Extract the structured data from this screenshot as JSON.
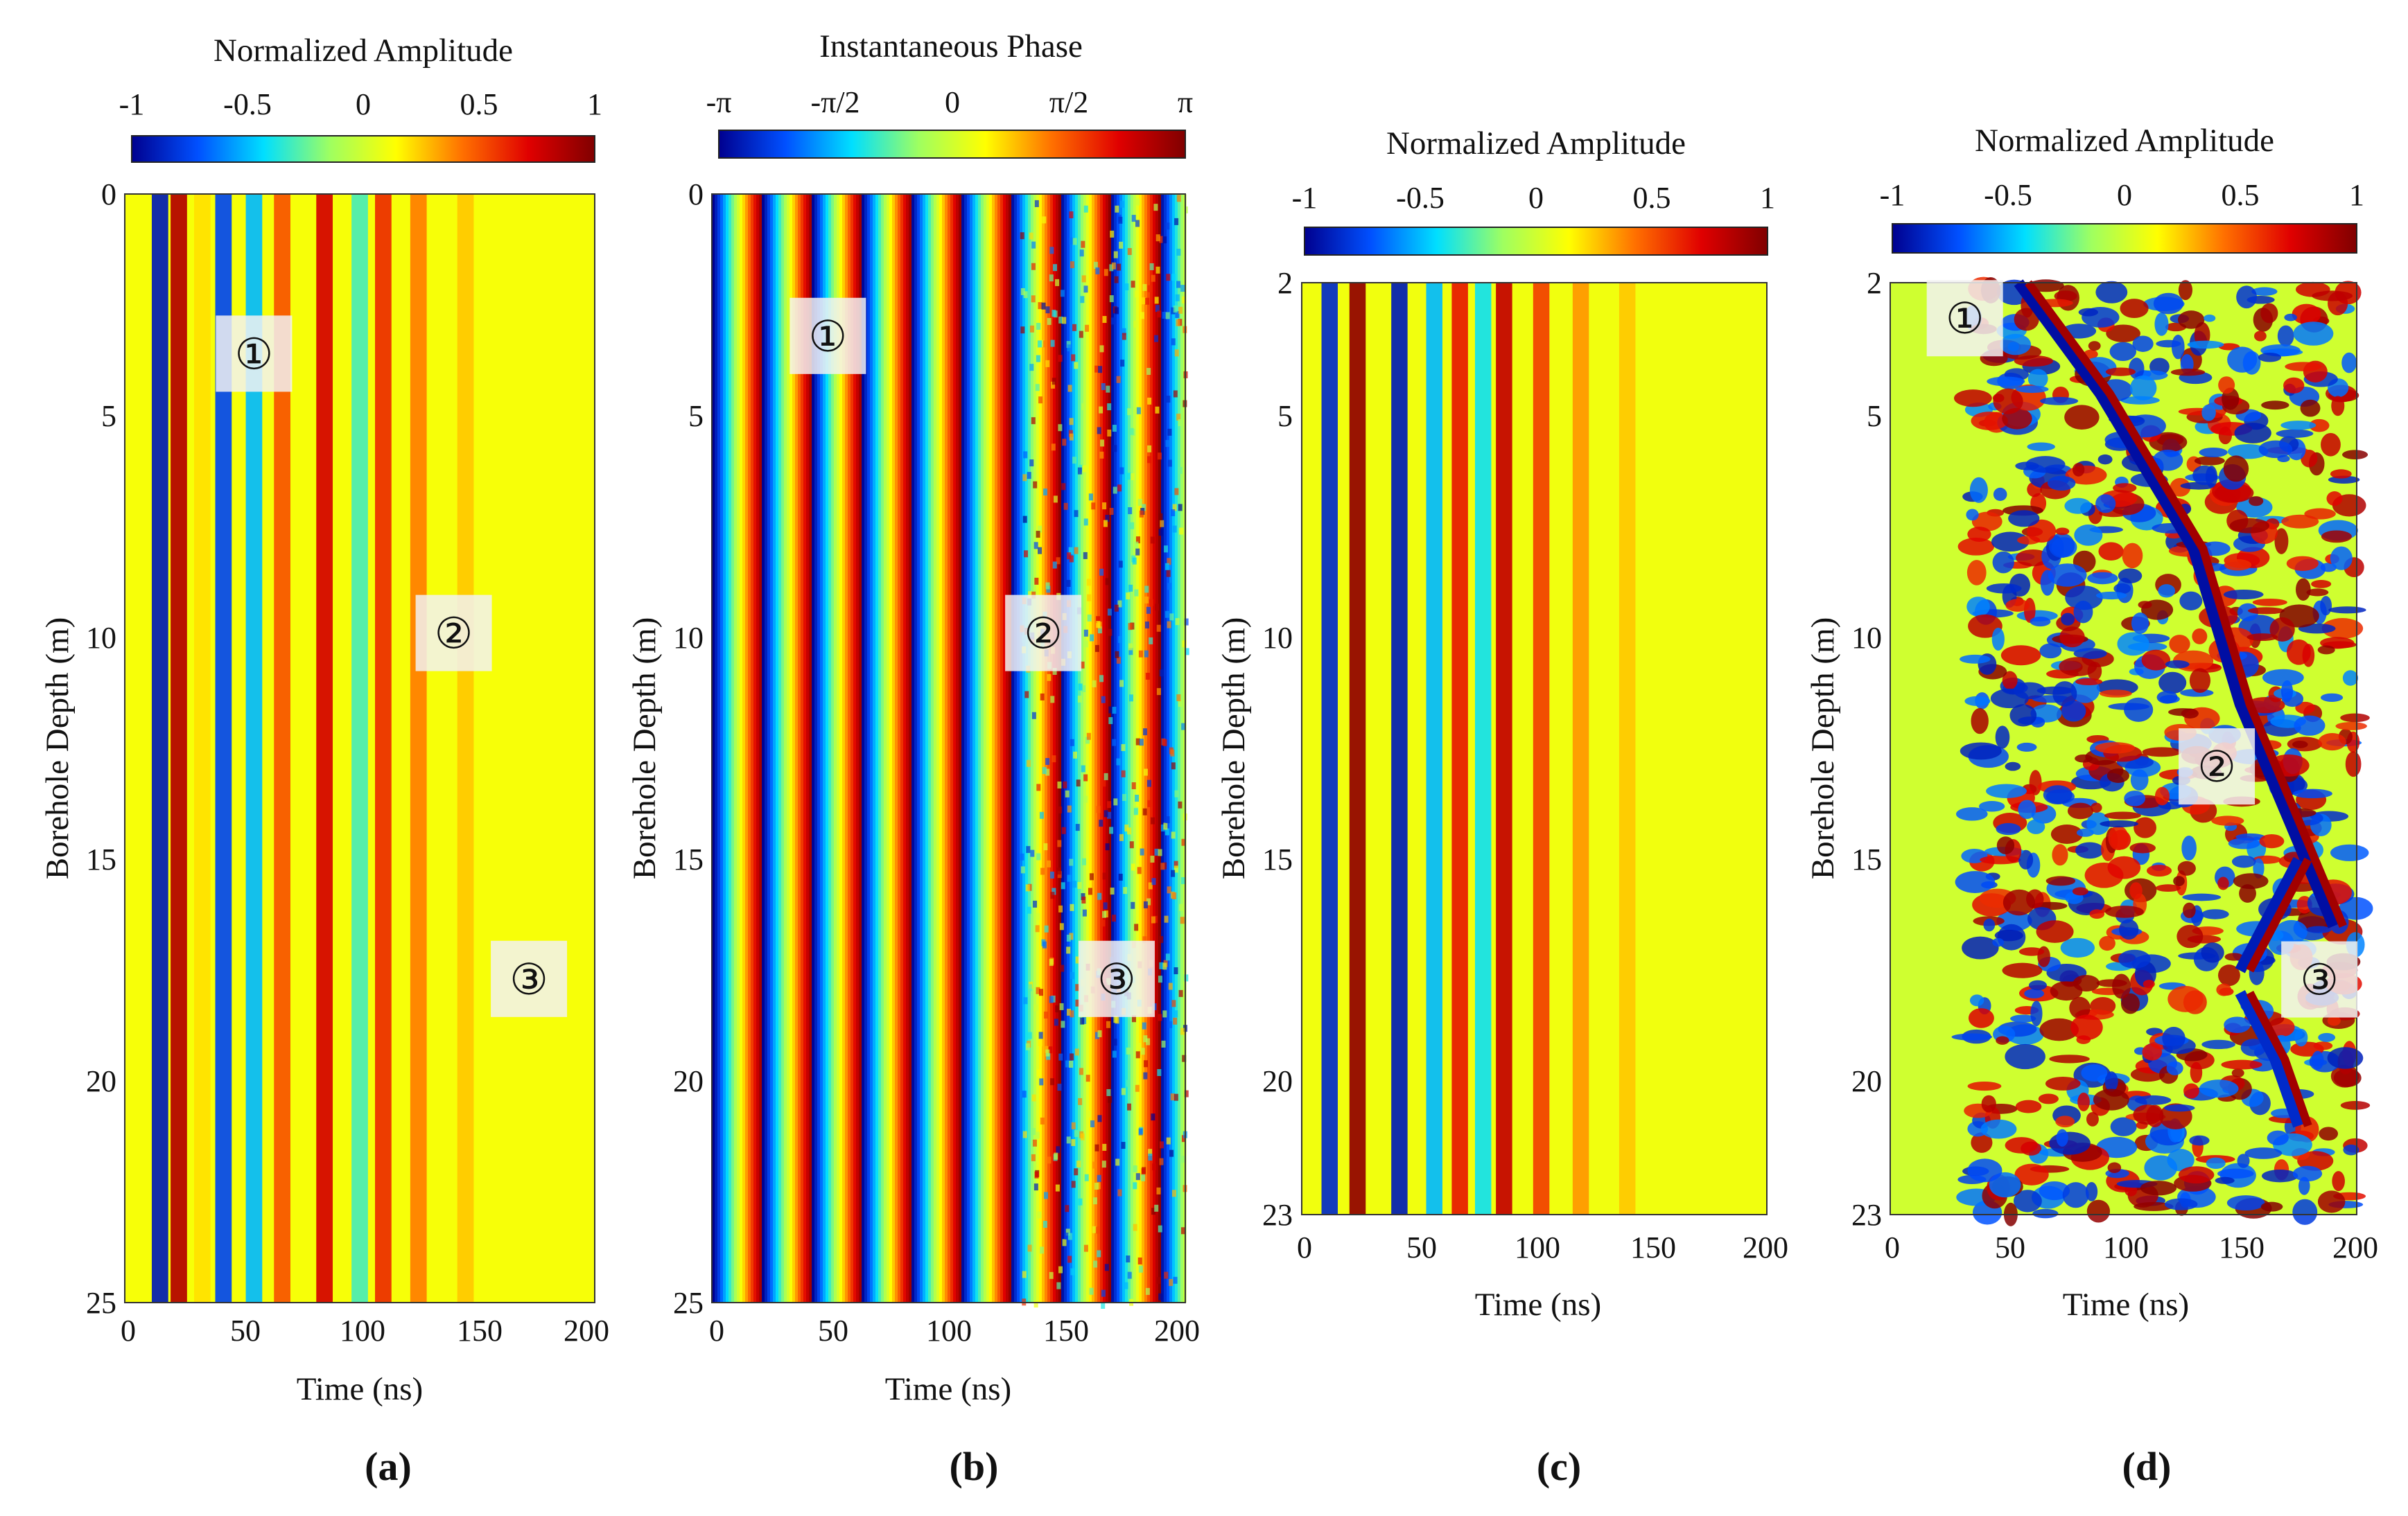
{
  "figure": {
    "panels": [
      {
        "id": "a",
        "panel_label": "(a)",
        "colorbar": {
          "title": "Normalized Amplitude",
          "ticks": [
            "-1",
            "-0.5",
            "0",
            "0.5",
            "1"
          ],
          "range": [
            -1,
            1
          ]
        },
        "y_axis": {
          "title": "Borehole Depth (m)",
          "ticks": [
            "0",
            "5",
            "10",
            "15",
            "20",
            "25"
          ],
          "range": [
            0,
            25
          ]
        },
        "x_axis": {
          "title": "Time (ns)",
          "ticks": [
            "0",
            "50",
            "100",
            "150",
            "200"
          ],
          "range": [
            0,
            200
          ]
        },
        "markers": [
          {
            "text": "①",
            "time_ns": 55,
            "depth_m": 3.6
          },
          {
            "text": "②",
            "time_ns": 140,
            "depth_m": 9.9
          },
          {
            "text": "③",
            "time_ns": 172,
            "depth_m": 17.7
          }
        ]
      },
      {
        "id": "b",
        "panel_label": "(b)",
        "colorbar": {
          "title": "Instantaneous Phase",
          "ticks": [
            "-π",
            "-π/2",
            "0",
            "π/2",
            "π"
          ],
          "range": [
            -3.1416,
            3.1416
          ]
        },
        "y_axis": {
          "title": "Borehole Depth (m)",
          "ticks": [
            "0",
            "5",
            "10",
            "15",
            "20",
            "25"
          ],
          "range": [
            0,
            25
          ]
        },
        "x_axis": {
          "title": "Time (ns)",
          "ticks": [
            "0",
            "50",
            "100",
            "150",
            "200"
          ],
          "range": [
            0,
            200
          ]
        },
        "markers": [
          {
            "text": "①",
            "time_ns": 49,
            "depth_m": 3.2
          },
          {
            "text": "②",
            "time_ns": 140,
            "depth_m": 9.9
          },
          {
            "text": "③",
            "time_ns": 171,
            "depth_m": 17.7
          }
        ]
      },
      {
        "id": "c",
        "panel_label": "(c)",
        "colorbar": {
          "title": "Normalized Amplitude",
          "ticks": [
            "-1",
            "-0.5",
            "0",
            "0.5",
            "1"
          ],
          "range": [
            -1,
            1
          ]
        },
        "y_axis": {
          "title": "Borehole Depth (m)",
          "ticks": [
            "2",
            "5",
            "10",
            "15",
            "20",
            "23"
          ],
          "range": [
            2,
            23
          ]
        },
        "x_axis": {
          "title": "Time (ns)",
          "ticks": [
            "0",
            "50",
            "100",
            "150",
            "200"
          ],
          "range": [
            0,
            200
          ]
        },
        "markers": []
      },
      {
        "id": "d",
        "panel_label": "(d)",
        "colorbar": {
          "title": "Normalized Amplitude",
          "ticks": [
            "-1",
            "-0.5",
            "0",
            "0.5",
            "1"
          ],
          "range": [
            -1,
            1
          ]
        },
        "y_axis": {
          "title": "Borehole Depth (m)",
          "ticks": [
            "2",
            "5",
            "10",
            "15",
            "20",
            "23"
          ],
          "range": [
            2,
            23
          ]
        },
        "x_axis": {
          "title": "Time (ns)",
          "ticks": [
            "0",
            "50",
            "100",
            "150",
            "200"
          ],
          "range": [
            0,
            200
          ]
        },
        "markers": [
          {
            "text": "①",
            "time_ns": 32,
            "depth_m": 2.8
          },
          {
            "text": "②",
            "time_ns": 140,
            "depth_m": 12.9
          },
          {
            "text": "③",
            "time_ns": 184,
            "depth_m": 17.7
          }
        ]
      }
    ]
  },
  "chart_data": [
    {
      "type": "heatmap",
      "panel": "a",
      "colorbar_label": "Normalized Amplitude",
      "value_range": [
        -1,
        1
      ],
      "xlabel": "Time (ns)",
      "ylabel": "Borehole Depth (m)",
      "xlim": [
        0,
        200
      ],
      "ylim": [
        0,
        25
      ],
      "y_reversed": true,
      "colormap": "jet",
      "colormap_stops": [
        "#00008f",
        "#0050ff",
        "#00dfff",
        "#9fff60",
        "#ffff00",
        "#ff7000",
        "#e00000",
        "#800000"
      ],
      "background_value": 0.12,
      "dominant_bands": [
        {
          "time_ns": 15,
          "value": -0.9
        },
        {
          "time_ns": 23,
          "value": 0.85
        },
        {
          "time_ns": 33,
          "value": 0.2
        },
        {
          "time_ns": 42,
          "value": -0.75
        },
        {
          "time_ns": 55,
          "value": -0.5
        },
        {
          "time_ns": 67,
          "value": 0.5
        },
        {
          "time_ns": 85,
          "value": 0.75
        },
        {
          "time_ns": 100,
          "value": -0.3
        },
        {
          "time_ns": 110,
          "value": 0.6
        },
        {
          "time_ns": 125,
          "value": 0.4
        },
        {
          "time_ns": 145,
          "value": 0.25
        }
      ]
    },
    {
      "type": "heatmap",
      "panel": "b",
      "colorbar_label": "Instantaneous Phase",
      "value_range": [
        -3.1416,
        3.1416
      ],
      "xlabel": "Time (ns)",
      "ylabel": "Borehole Depth (m)",
      "xlim": [
        0,
        200
      ],
      "ylim": [
        0,
        25
      ],
      "y_reversed": true,
      "colormap": "jet",
      "colormap_stops": [
        "#00008f",
        "#0050ff",
        "#00dfff",
        "#9fff60",
        "#ffff00",
        "#ff7000",
        "#e00000",
        "#800000"
      ],
      "phase_period_ns": 21,
      "dominant_bands": [
        {
          "time_ns": 15,
          "value": -2.8
        },
        {
          "time_ns": 30,
          "value": 2.7
        },
        {
          "time_ns": 50,
          "value": -2.0
        },
        {
          "time_ns": 90,
          "value": 1.2
        }
      ]
    },
    {
      "type": "heatmap",
      "panel": "c",
      "colorbar_label": "Normalized Amplitude",
      "value_range": [
        -1,
        1
      ],
      "xlabel": "Time (ns)",
      "ylabel": "Borehole Depth (m)",
      "xlim": [
        0,
        200
      ],
      "ylim": [
        2,
        23
      ],
      "y_reversed": true,
      "colormap": "jet",
      "colormap_stops": [
        "#00008f",
        "#0050ff",
        "#00dfff",
        "#9fff60",
        "#ffff00",
        "#ff7000",
        "#e00000",
        "#800000"
      ],
      "background_value": 0.1,
      "dominant_bands": [
        {
          "time_ns": 12,
          "value": -0.85
        },
        {
          "time_ns": 24,
          "value": 0.95
        },
        {
          "time_ns": 42,
          "value": -0.9
        },
        {
          "time_ns": 57,
          "value": -0.5
        },
        {
          "time_ns": 68,
          "value": 0.65
        },
        {
          "time_ns": 78,
          "value": -0.4
        },
        {
          "time_ns": 87,
          "value": 0.8
        },
        {
          "time_ns": 103,
          "value": 0.55
        },
        {
          "time_ns": 120,
          "value": 0.35
        },
        {
          "time_ns": 140,
          "value": 0.25
        }
      ]
    },
    {
      "type": "heatmap",
      "panel": "d",
      "colorbar_label": "Normalized Amplitude",
      "value_range": [
        -1,
        1
      ],
      "xlabel": "Time (ns)",
      "ylabel": "Borehole Depth (m)",
      "xlim": [
        0,
        200
      ],
      "ylim": [
        2,
        23
      ],
      "y_reversed": true,
      "colormap": "jet",
      "colormap_stops": [
        "#00008f",
        "#0050ff",
        "#00dfff",
        "#9fff60",
        "#ffff00",
        "#ff7000",
        "#e00000",
        "#800000"
      ],
      "background_value": 0.0,
      "reflection_lines": [
        {
          "points": [
            [
              55,
              2
            ],
            [
              90,
              4.5
            ],
            [
              130,
              8
            ],
            [
              150,
              11.5
            ],
            [
              170,
              14
            ],
            [
              190,
              16.5
            ]
          ],
          "value": -0.95
        },
        {
          "points": [
            [
              150,
              17.5
            ],
            [
              165,
              16
            ],
            [
              175,
              15
            ]
          ],
          "value": -0.9
        },
        {
          "points": [
            [
              150,
              18
            ],
            [
              165,
              19.5
            ],
            [
              175,
              21
            ]
          ],
          "value": -0.85
        }
      ]
    }
  ]
}
